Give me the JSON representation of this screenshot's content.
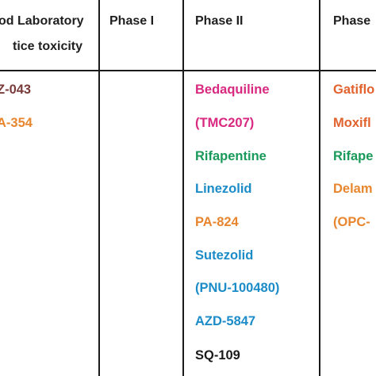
{
  "header": {
    "col1_line1": "od Laboratory",
    "col1_line2": "tice toxicity",
    "phase1": "Phase I",
    "phase2": "Phase II",
    "phase3": "Phase"
  },
  "columns": {
    "preclinical": [
      {
        "name": "Z-043",
        "color": "#7a3b3b"
      },
      {
        "name": "A-354",
        "color": "#e8862f"
      }
    ],
    "phase2": [
      {
        "name": "Bedaquiline",
        "color": "#d8287f"
      },
      {
        "name": "(TMC207)",
        "color": "#d8287f"
      },
      {
        "name": "Rifapentine",
        "color": "#1a9a5a"
      },
      {
        "name": "Linezolid",
        "color": "#1b8cc8"
      },
      {
        "name": "PA-824",
        "color": "#e8862f"
      },
      {
        "name": "Sutezolid",
        "color": "#1b8cc8"
      },
      {
        "name": "(PNU-100480)",
        "color": "#1b8cc8"
      },
      {
        "name": "AZD-5847",
        "color": "#1b8cc8"
      },
      {
        "name": "SQ-109",
        "color": "#1a1a1a"
      }
    ],
    "phase3": [
      {
        "name": "Gatiflo",
        "color": "#e2622d"
      },
      {
        "name": "Moxifl",
        "color": "#e2622d"
      },
      {
        "name": "Rifape",
        "color": "#1a9a5a"
      },
      {
        "name": "Delam",
        "color": "#e8862f"
      },
      {
        "name": "(OPC-",
        "color": "#e8862f"
      }
    ]
  }
}
